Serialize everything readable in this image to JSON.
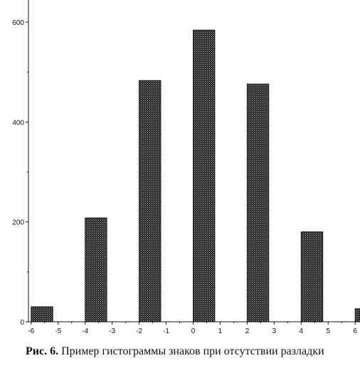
{
  "chart_data": {
    "type": "bar",
    "title": "",
    "xlabel": "",
    "ylabel": "",
    "bars": [
      {
        "x0": -6,
        "x1": -5.2,
        "value": 30
      },
      {
        "x0": -4,
        "x1": -3.2,
        "value": 208
      },
      {
        "x0": -2,
        "x1": -1.2,
        "value": 483
      },
      {
        "x0": 0,
        "x1": 0.8,
        "value": 584
      },
      {
        "x0": 2,
        "x1": 2.8,
        "value": 476
      },
      {
        "x0": 4,
        "x1": 4.8,
        "value": 180
      },
      {
        "x0": 6,
        "x1": 6.8,
        "value": 26
      }
    ],
    "xlim": [
      -6.1,
      6.1
    ],
    "ylim": [
      0,
      630
    ],
    "x_ticks": [
      -6,
      -5,
      -4,
      -3,
      -2,
      -1,
      0,
      1,
      2,
      3,
      4,
      5,
      6
    ],
    "x_tick_labels": [
      "-6",
      "-5",
      "-4",
      "-3",
      "-2",
      "-1",
      "0",
      "1",
      "2",
      "3",
      "4",
      "5",
      "6"
    ],
    "y_ticks": [
      0,
      200,
      400,
      600
    ],
    "y_tick_labels": [
      "0",
      "200",
      "400",
      "600"
    ],
    "grid": false,
    "colors": {
      "bar_fill": "#1a1a1a",
      "bar_hatch": "#bdbdbd",
      "axis": "#111111"
    }
  },
  "caption": {
    "label": "Рис. 6.",
    "text": " Пример гистограммы знаков при отсутствии разладки"
  }
}
